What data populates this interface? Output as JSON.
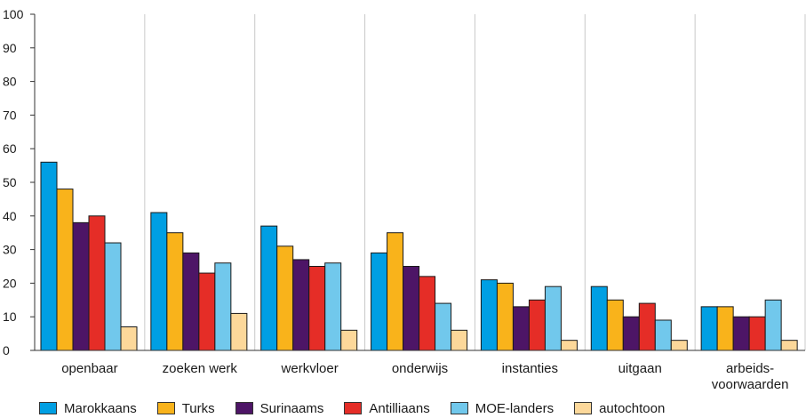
{
  "chart_data": {
    "type": "bar",
    "title": "",
    "xlabel": "",
    "ylabel": "",
    "ylim": [
      0,
      100
    ],
    "yticks": [
      0,
      10,
      20,
      30,
      40,
      50,
      60,
      70,
      80,
      90,
      100
    ],
    "grid": "vertical separators between categories",
    "legend_position": "bottom",
    "categories": [
      [
        "openbaar"
      ],
      [
        "zoeken werk"
      ],
      [
        "werkvloer"
      ],
      [
        "onderwijs"
      ],
      [
        "instanties"
      ],
      [
        "uitgaan"
      ],
      [
        "arbeids-",
        "voorwaarden"
      ]
    ],
    "series": [
      {
        "name": "Marokkaans",
        "color": "#009fe3",
        "values": [
          56,
          41,
          37,
          29,
          21,
          19,
          13
        ]
      },
      {
        "name": "Turks",
        "color": "#f9b31b",
        "values": [
          48,
          35,
          31,
          35,
          20,
          15,
          13
        ]
      },
      {
        "name": "Surinaams",
        "color": "#4d1566",
        "values": [
          38,
          29,
          27,
          25,
          13,
          10,
          10
        ]
      },
      {
        "name": "Antilliaans",
        "color": "#e52d27",
        "values": [
          40,
          23,
          25,
          22,
          15,
          14,
          10
        ]
      },
      {
        "name": "MOE-landers",
        "color": "#71c8ec",
        "values": [
          32,
          26,
          26,
          14,
          19,
          9,
          15
        ]
      },
      {
        "name": "autochtoon",
        "color": "#fcd89a",
        "values": [
          7,
          11,
          6,
          6,
          3,
          3,
          3
        ]
      }
    ]
  }
}
